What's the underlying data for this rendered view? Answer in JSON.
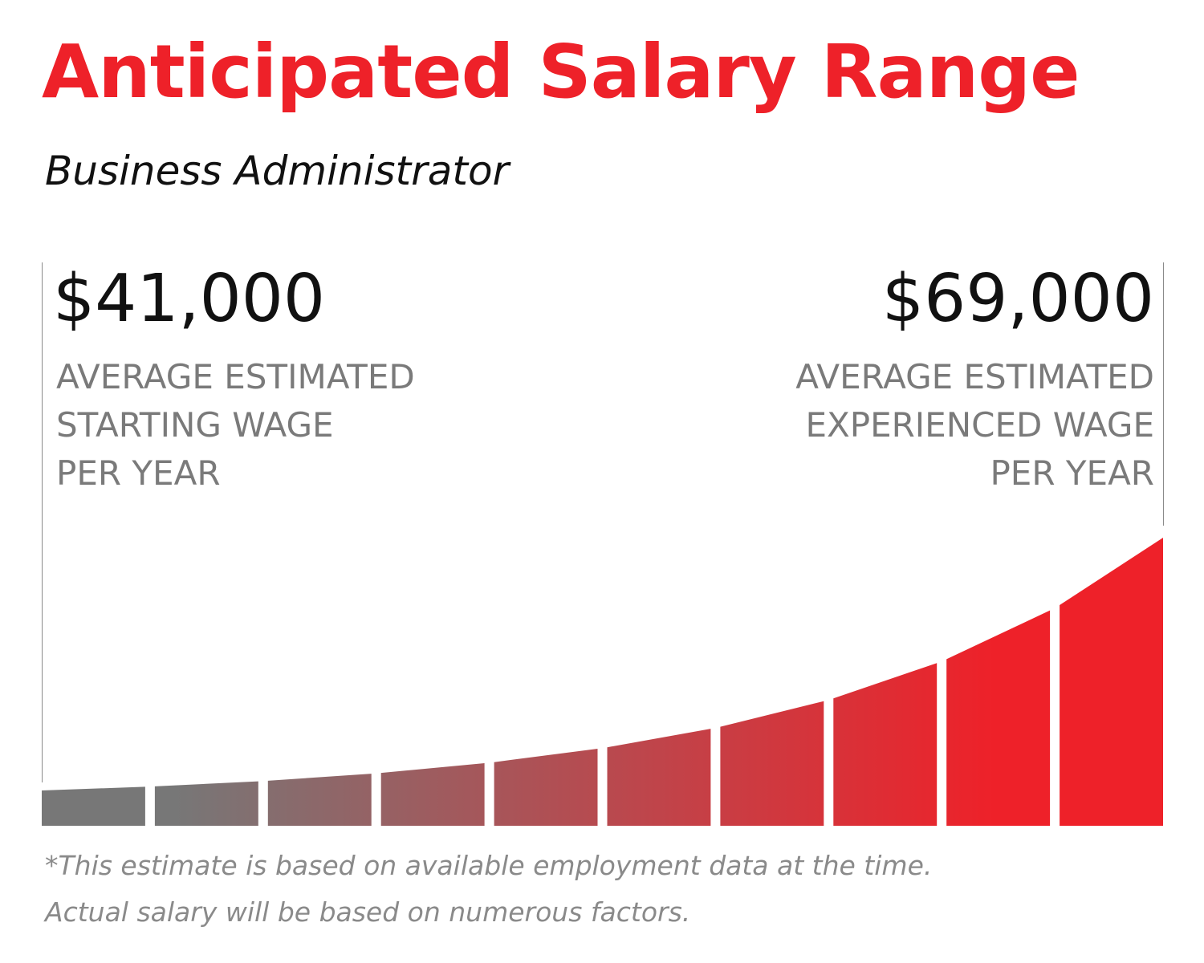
{
  "title": "Anticipated Salary Range",
  "subtitle": "Business Administrator",
  "colors": {
    "accent": "#ee2129",
    "bar_start": "#777777",
    "bar_end": "#ee2129",
    "caption": "#7a7a7a"
  },
  "start": {
    "amount": "$41,000",
    "caption_lines": [
      "AVERAGE ESTIMATED",
      "STARTING WAGE",
      "PER YEAR"
    ]
  },
  "end": {
    "amount": "$69,000",
    "caption_lines": [
      "AVERAGE ESTIMATED",
      "EXPERIENCED WAGE",
      "PER YEAR"
    ]
  },
  "footnote_lines": [
    "*This estimate is based on available employment data at the time.",
    "Actual salary will be based on numerous factors."
  ],
  "chart_data": {
    "type": "bar",
    "bar_count": 10,
    "min_value": 41000,
    "max_value": 69000,
    "shape": "exponential growth curve from starting wage to experienced wage",
    "gradient": "gray to red"
  }
}
